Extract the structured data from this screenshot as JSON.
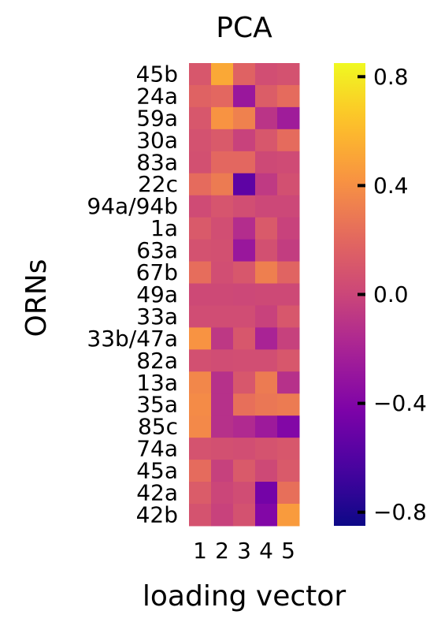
{
  "chart_data": {
    "type": "heatmap",
    "title": "PCA",
    "xlabel": "loading vector",
    "ylabel": "ORNs",
    "x_categories": [
      "1",
      "2",
      "3",
      "4",
      "5"
    ],
    "y_categories": [
      "45b",
      "24a",
      "59a",
      "30a",
      "83a",
      "22c",
      "94a/94b",
      "1a",
      "63a",
      "67b",
      "49a",
      "33a",
      "33b/47a",
      "82a",
      "13a",
      "35a",
      "85c",
      "74a",
      "45a",
      "42a",
      "42b"
    ],
    "values": [
      [
        0.1,
        0.52,
        0.17,
        0.05,
        0.07
      ],
      [
        0.17,
        0.2,
        -0.28,
        0.14,
        0.22
      ],
      [
        0.1,
        0.42,
        0.33,
        -0.1,
        -0.25
      ],
      [
        0.07,
        0.12,
        -0.02,
        0.1,
        0.22
      ],
      [
        0.06,
        0.2,
        0.2,
        0.02,
        0.03
      ],
      [
        0.22,
        0.3,
        -0.55,
        -0.07,
        0.06
      ],
      [
        0.03,
        0.09,
        0.05,
        0.01,
        0.01
      ],
      [
        0.12,
        0.05,
        -0.14,
        0.12,
        -0.02
      ],
      [
        0.07,
        0.06,
        -0.28,
        0.06,
        -0.05
      ],
      [
        0.23,
        0.05,
        0.1,
        0.32,
        0.18
      ],
      [
        0.02,
        0.02,
        0.01,
        0.02,
        0.02
      ],
      [
        0.04,
        0.04,
        0.04,
        -0.02,
        0.1
      ],
      [
        0.42,
        -0.08,
        0.1,
        -0.2,
        -0.03
      ],
      [
        0.06,
        0.04,
        0.05,
        0.05,
        0.1
      ],
      [
        0.36,
        -0.12,
        0.1,
        0.3,
        -0.12
      ],
      [
        0.38,
        -0.12,
        0.24,
        0.28,
        0.3
      ],
      [
        0.37,
        -0.12,
        -0.16,
        -0.26,
        -0.4
      ],
      [
        0.08,
        0.06,
        0.05,
        0.08,
        0.1
      ],
      [
        0.22,
        -0.03,
        0.12,
        0.02,
        0.12
      ],
      [
        0.13,
        0.0,
        0.04,
        -0.46,
        0.24
      ],
      [
        0.08,
        -0.02,
        0.07,
        -0.4,
        0.46
      ]
    ],
    "colorbar": {
      "colormap": "plasma",
      "vmin": -0.85,
      "vmax": 0.85,
      "ticks": [
        -0.8,
        -0.4,
        0.0,
        0.4,
        0.8
      ],
      "tick_labels": [
        "−0.8",
        "−0.4",
        "0.0",
        "0.4",
        "0.8"
      ]
    },
    "grid": false,
    "legend": "colorbar-right"
  }
}
